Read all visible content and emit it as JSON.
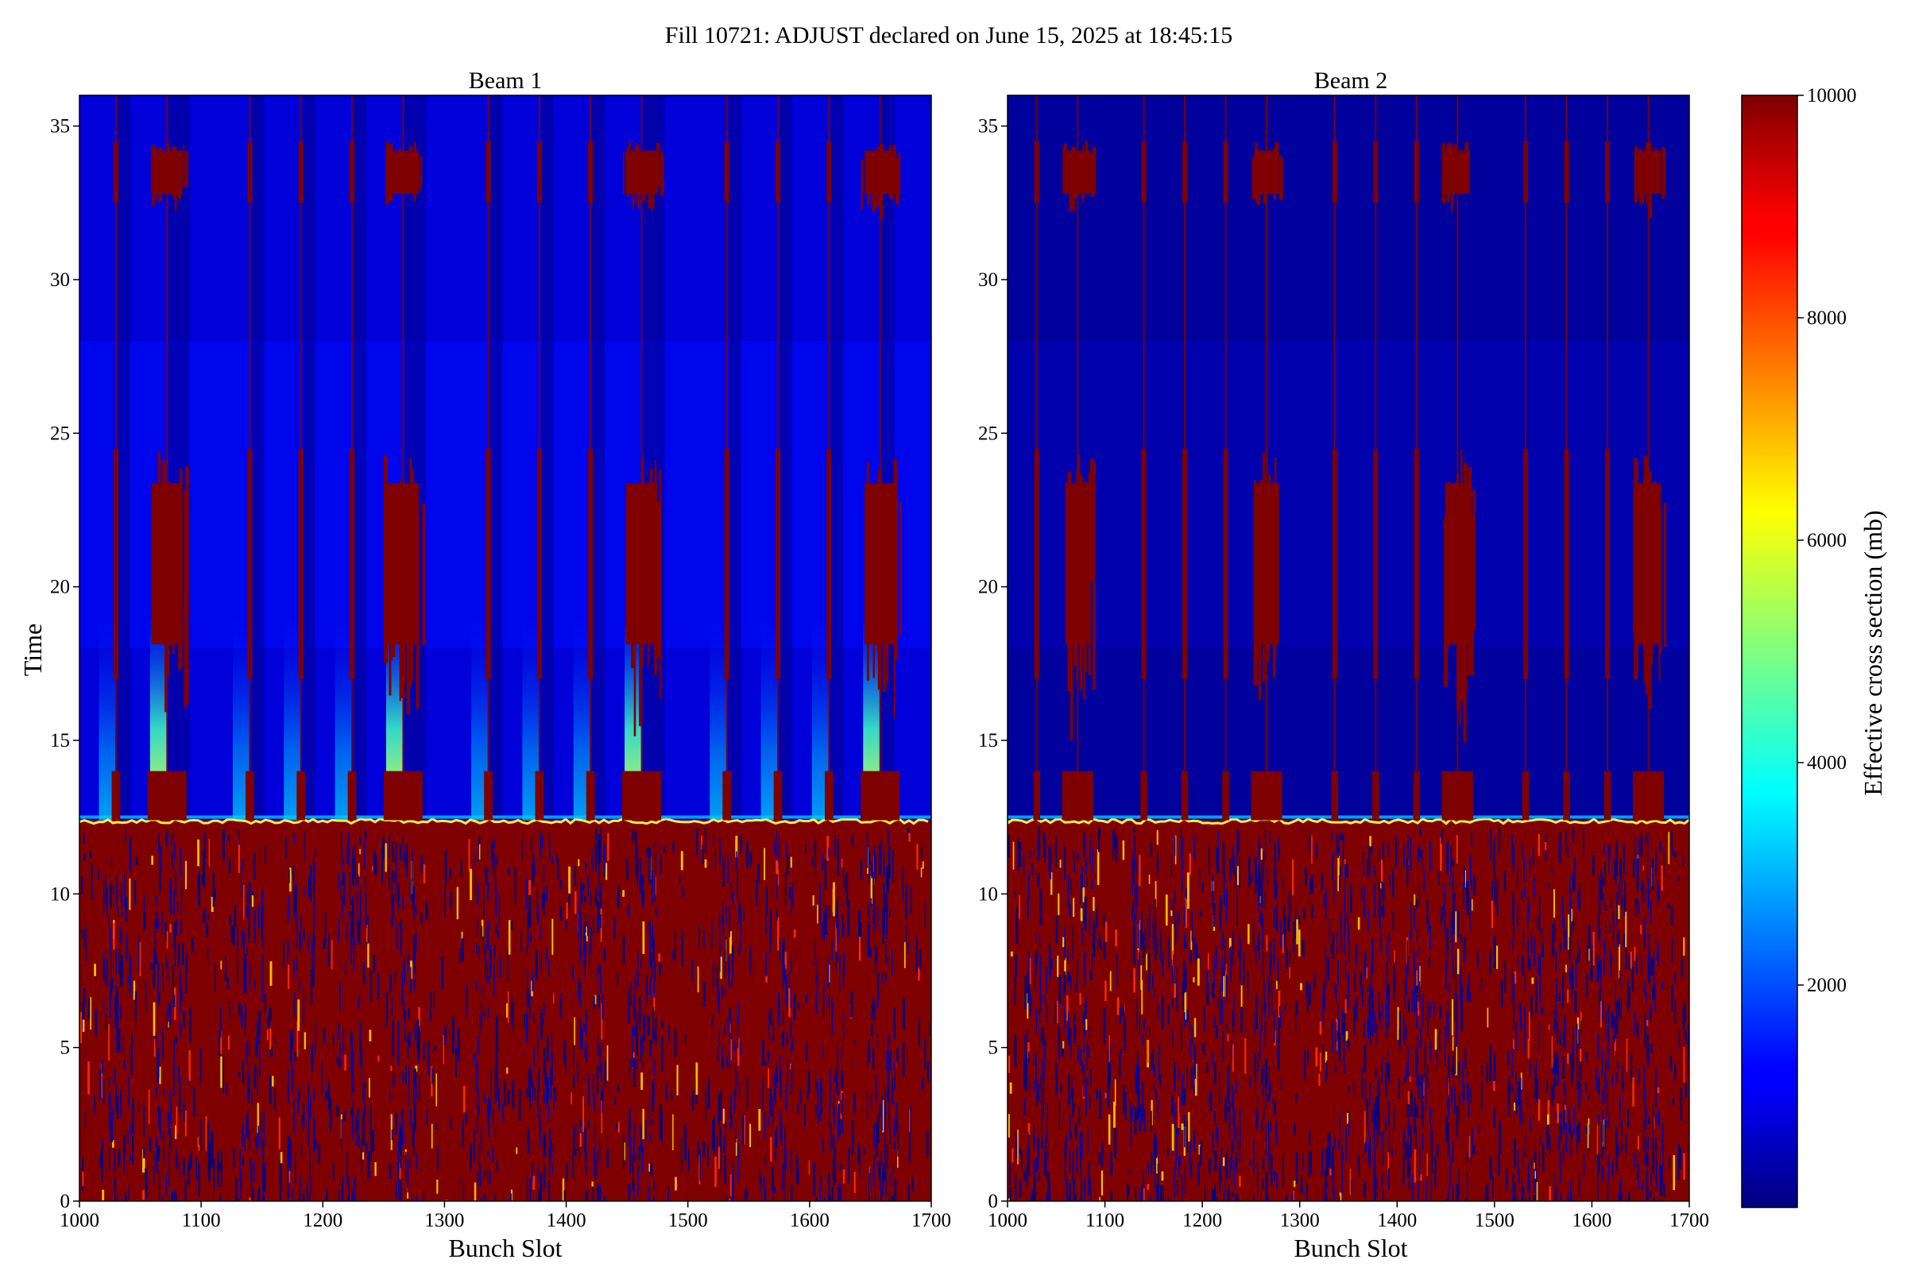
{
  "figure": {
    "suptitle": "Fill 10721: ADJUST declared on June 15, 2025 at 18:45:15",
    "colormap": "jet",
    "colors": {
      "background": "#ffffff",
      "low": "#00007f",
      "high": "#7f0000"
    }
  },
  "chart_data": [
    {
      "type": "heatmap",
      "title": "Beam 1",
      "xlabel": "Bunch Slot",
      "ylabel": "Time",
      "xlim": [
        1000,
        1700
      ],
      "ylim": [
        0,
        36
      ],
      "xticks": [
        1000,
        1100,
        1200,
        1300,
        1400,
        1500,
        1600,
        1700
      ],
      "yticks": [
        0,
        5,
        10,
        15,
        20,
        25,
        30,
        35
      ],
      "train_starts": [
        1030,
        1072,
        1140,
        1182,
        1224,
        1266,
        1336,
        1378,
        1420,
        1462,
        1532,
        1574,
        1616,
        1658
      ],
      "gap_slots": [
        1030,
        1072,
        1140,
        1182,
        1224,
        1266,
        1336,
        1378,
        1420,
        1462,
        1532,
        1574,
        1616,
        1658
      ],
      "wide_gaps": [
        1072,
        1266,
        1462,
        1658
      ],
      "saturation_boundary_time": 12.4,
      "gap_saturated_band_time": [
        12.4,
        14.0
      ],
      "gap_bursts_time": [
        [
          17,
          24.5
        ],
        [
          32.5,
          34.5
        ]
      ],
      "values_summary": {
        "before_boundary_mb": 10000,
        "after_boundary_background_mb": 700,
        "train_peak_mb": 5500,
        "train_peak_time": [
          12.4,
          18
        ]
      }
    },
    {
      "type": "heatmap",
      "title": "Beam 2",
      "xlabel": "Bunch Slot",
      "ylabel": "",
      "xlim": [
        1000,
        1700
      ],
      "ylim": [
        0,
        36
      ],
      "xticks": [
        1000,
        1100,
        1200,
        1300,
        1400,
        1500,
        1600,
        1700
      ],
      "yticks": [
        0,
        5,
        10,
        15,
        20,
        25,
        30,
        35
      ],
      "gap_slots": [
        1030,
        1072,
        1140,
        1182,
        1224,
        1266,
        1336,
        1378,
        1420,
        1462,
        1532,
        1574,
        1616,
        1658
      ],
      "wide_gaps": [
        1072,
        1266,
        1462,
        1658
      ],
      "saturation_boundary_time": 12.4,
      "gap_saturated_band_time": [
        12.4,
        14.0
      ],
      "gap_bursts_time": [
        [
          17,
          24.5
        ],
        [
          32.5,
          34.5
        ]
      ],
      "values_summary": {
        "before_boundary_mb": 10000,
        "after_boundary_background_mb": 300,
        "train_peak_mb": 1500
      }
    }
  ],
  "colorbar": {
    "label": "Effective cross section (mb)",
    "range": [
      0,
      10000
    ],
    "ticks": [
      2000,
      4000,
      6000,
      8000,
      10000
    ]
  }
}
